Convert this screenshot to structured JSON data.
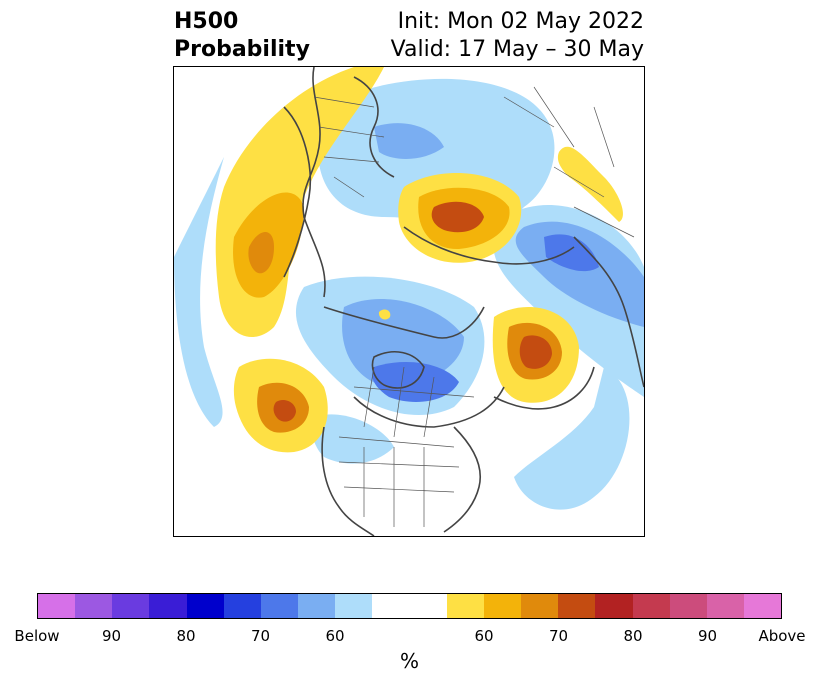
{
  "title": {
    "left_line1": "H500",
    "left_line2": "Probability",
    "right_line1": "Init: Mon 02 May 2022",
    "right_line2": "Valid: 17 May – 30 May"
  },
  "colorbar": {
    "colors": [
      "#d670e8",
      "#9c58e2",
      "#6a3be0",
      "#3a1dd6",
      "#0000cc",
      "#2540df",
      "#4d78ea",
      "#7aaef2",
      "#aeddfa",
      "#ffffff",
      "#ffffff",
      "#fee044",
      "#f3b30a",
      "#e08a0c",
      "#c44c11",
      "#b22222",
      "#c43a4f",
      "#cc4c7c",
      "#d962a8",
      "#e678d8"
    ],
    "ticks": [
      "Below",
      "90",
      "80",
      "70",
      "60",
      "60",
      "70",
      "80",
      "90",
      "Above"
    ],
    "units": "%"
  }
}
